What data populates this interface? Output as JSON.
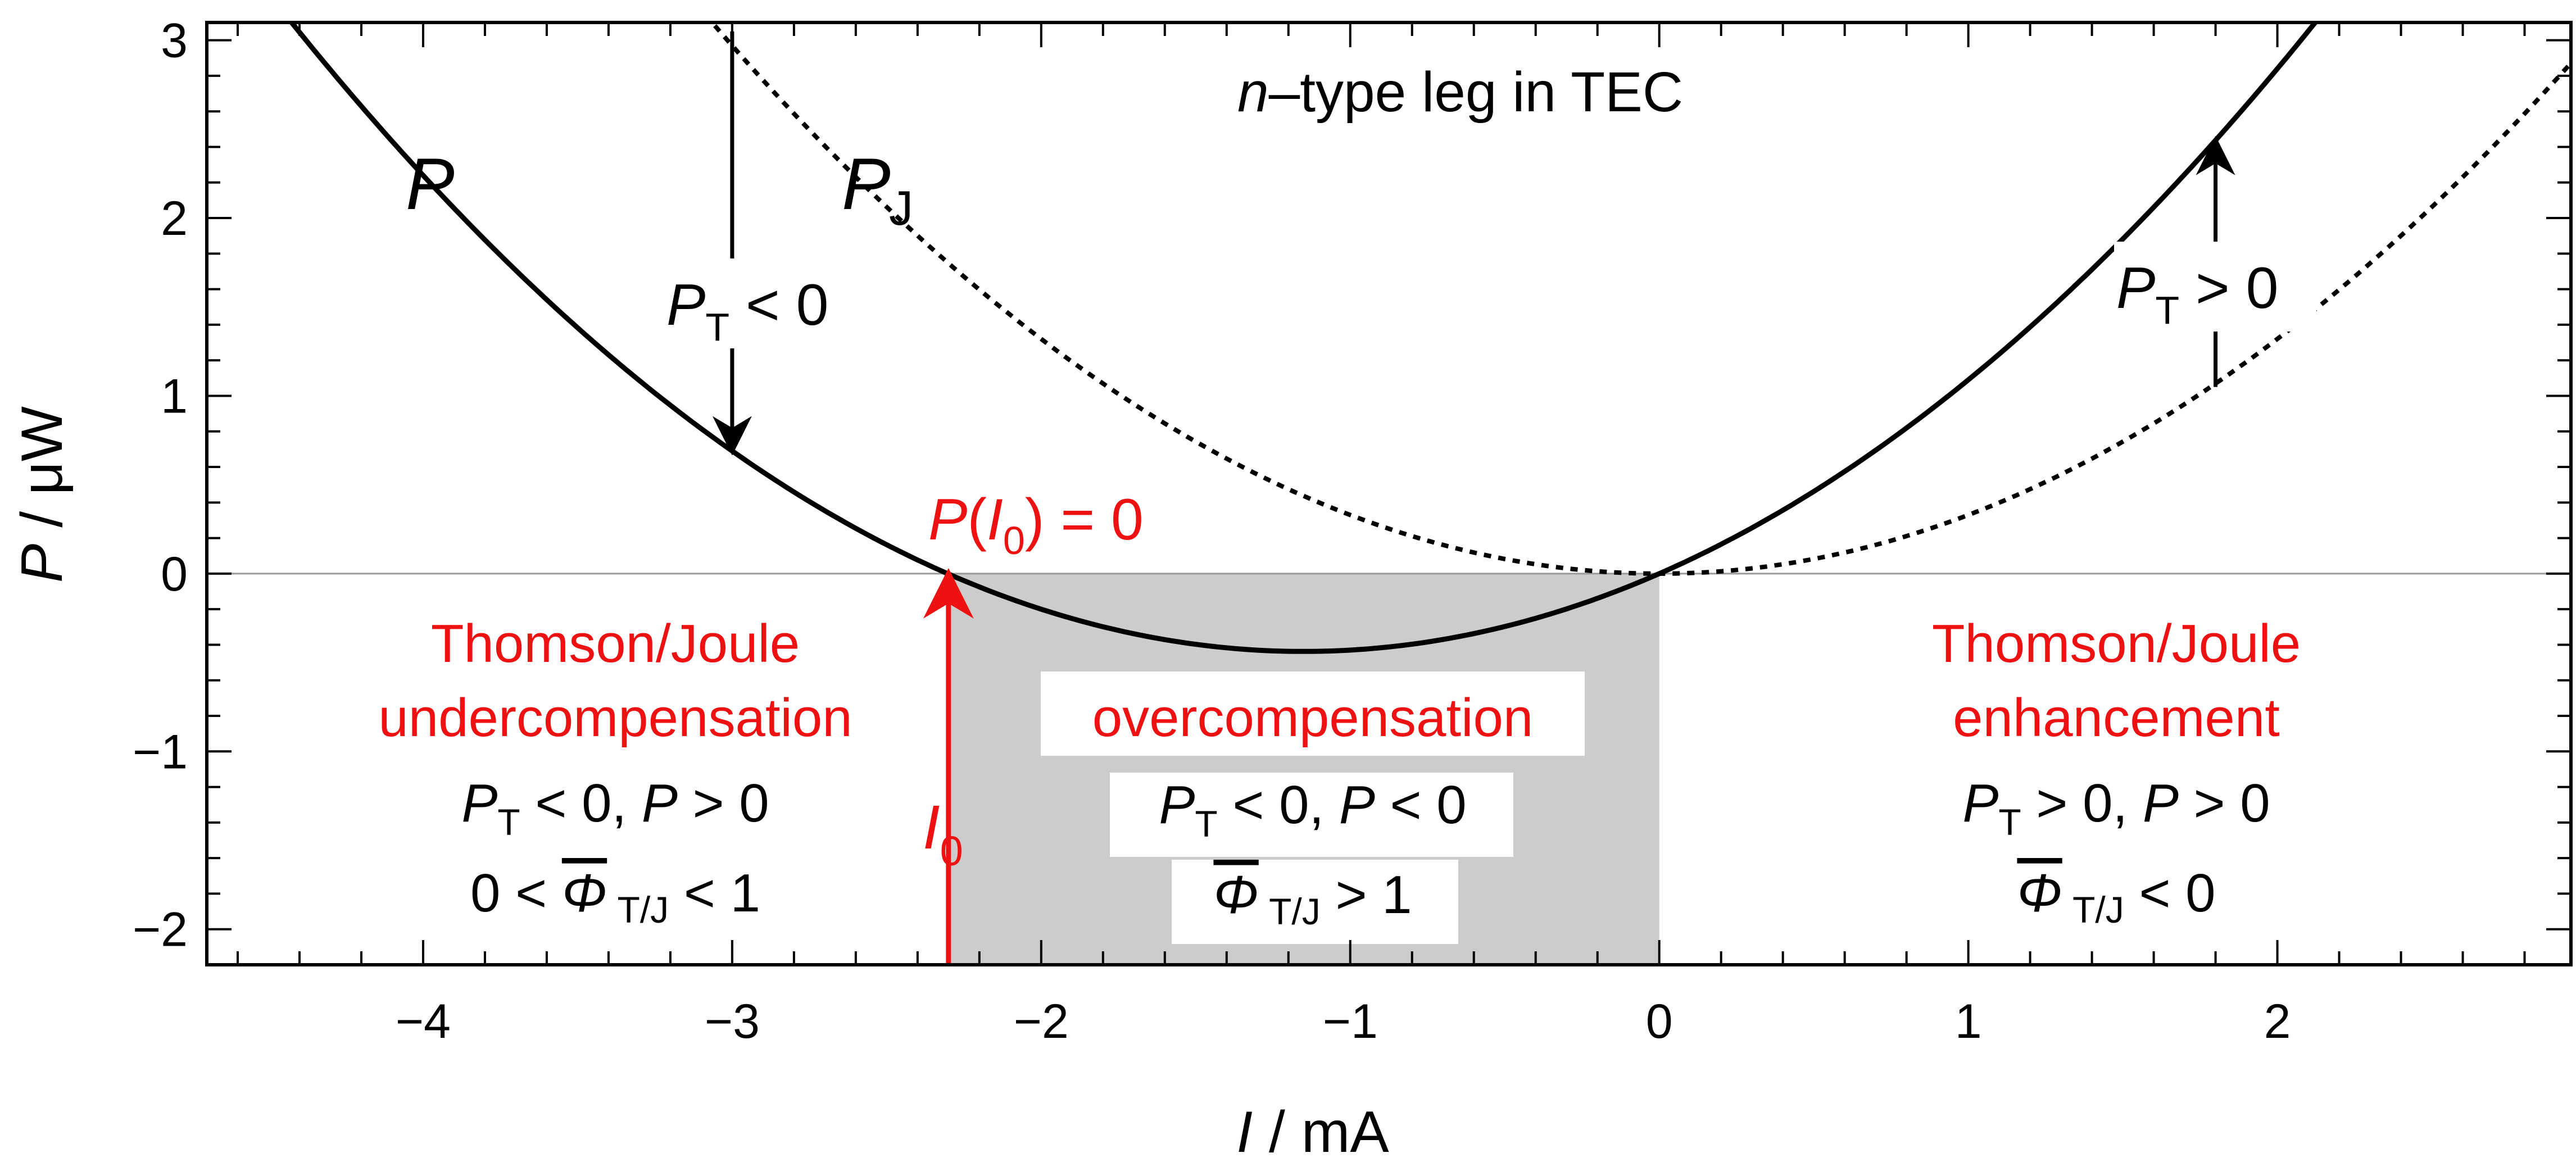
{
  "chart_data": {
    "type": "line",
    "title": "n–type leg in TEC",
    "xlabel": "I / mA",
    "ylabel": "P / μW",
    "xlim": [
      -4.7,
      2.95
    ],
    "ylim": [
      -2.2,
      3.1
    ],
    "x_ticks": [
      -4,
      -3,
      -2,
      -1,
      0,
      1,
      2
    ],
    "x_tick_labels": [
      "−4",
      "−3",
      "−2",
      "−1",
      "0",
      "1",
      "2"
    ],
    "y_ticks": [
      -2,
      -1,
      0,
      1,
      2,
      3
    ],
    "y_tick_labels": [
      "−2",
      "−1",
      "0",
      "1",
      "2",
      "3"
    ],
    "series": [
      {
        "name": "P",
        "label": "P",
        "style": "solid",
        "formula": "0.33*I^2 + 0.76*I",
        "a": 0.33,
        "b": 0.76
      },
      {
        "name": "P_J",
        "label": "P",
        "label_sub": "J",
        "style": "dotted",
        "formula": "0.33*I^2",
        "a": 0.33,
        "b": 0
      }
    ],
    "I0": -2.3,
    "shaded_region": {
      "x_start": -2.3,
      "x_end": 0
    },
    "annotations": {
      "P0": {
        "prefix": "P(",
        "italic": "I",
        "sub": "0",
        "suffix": ") = 0"
      },
      "I0_label": {
        "italic": "I",
        "sub": "0"
      },
      "pt_left": {
        "x": -3.0,
        "y_top": 3.05,
        "text": "P",
        "sub": "T",
        "rel": " < 0"
      },
      "pt_right": {
        "x": 1.8,
        "y_bottom": 1.05,
        "text": "P",
        "sub": "T",
        "rel": " > 0"
      }
    },
    "regions": {
      "left": {
        "heading1": "Thomson/Joule",
        "heading2": "undercompensation",
        "cond_a": "P",
        "cond_a_sub": "T",
        "cond_a_rel": " < 0, ",
        "cond_b": "P",
        "cond_b_rel": " > 0",
        "phi_pre": "0 < ",
        "phi": "Φ",
        "phi_sub": " T/J",
        "phi_rel": " < 1"
      },
      "middle": {
        "heading1": "overcompensation",
        "cond_a": "P",
        "cond_a_sub": "T",
        "cond_a_rel": " < 0, ",
        "cond_b": "P",
        "cond_b_rel": " < 0",
        "phi": "Φ",
        "phi_sub": " T/J",
        "phi_rel": " > 1"
      },
      "right": {
        "heading1": "Thomson/Joule",
        "heading2": "enhancement",
        "cond_a": "P",
        "cond_a_sub": "T",
        "cond_a_rel": " > 0, ",
        "cond_b": "P",
        "cond_b_rel": " > 0",
        "phi": "Φ",
        "phi_sub": " T/J",
        "phi_rel": " < 0"
      }
    },
    "title_parts": {
      "italic": "n",
      "rest": "–type leg in TEC"
    },
    "xlabel_parts": {
      "italic": "I",
      "rest": " / mA"
    },
    "ylabel_parts": {
      "italic": "P",
      "rest": " / μW"
    },
    "colors": {
      "accent": "#ee1111",
      "shade": "#cccccc",
      "curve": "#000000",
      "zero_line": "#9a9a9a"
    }
  }
}
